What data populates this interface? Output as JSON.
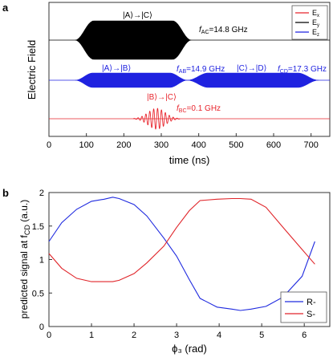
{
  "chart_data": [
    {
      "panel_label": "a",
      "type": "line",
      "xlabel": "time (ns)",
      "ylabel": "Electric Field",
      "xlim": [
        0,
        750
      ],
      "xticks": [
        0,
        100,
        200,
        300,
        400,
        500,
        600,
        700
      ],
      "legend": {
        "position": "top-right",
        "entries": [
          "Ex",
          "Ey",
          "Ez"
        ]
      },
      "series": [
        {
          "name": "Ex",
          "color": "#e8242c",
          "pulses": [
            {
              "start": 225,
              "end": 350,
              "shape": "gaussian",
              "cycles": 12
            }
          ]
        },
        {
          "name": "Ey",
          "color": "#000000",
          "pulses": [
            {
              "start": 70,
              "end": 380
            }
          ]
        },
        {
          "name": "Ez",
          "color": "#1f22e0",
          "pulses": [
            {
              "start": 70,
              "end": 370
            },
            {
              "start": 370,
              "end": 720
            }
          ]
        }
      ],
      "annotations": [
        {
          "text": "|A⟩→|C⟩",
          "color": "#000000"
        },
        {
          "text": "f",
          "sub": "AC",
          "suffix": "=14.8 GHz",
          "color": "#000000"
        },
        {
          "text": "|A⟩→|B⟩",
          "color": "#1f22e0"
        },
        {
          "text": "f",
          "sub": "AB",
          "suffix": "=14.9 GHz",
          "color": "#1f22e0"
        },
        {
          "text": "|C⟩→|D⟩",
          "color": "#1f22e0"
        },
        {
          "text": "f",
          "sub": "CD",
          "suffix": "=17.3 GHz",
          "color": "#1f22e0"
        },
        {
          "text": "|B⟩→|C⟩",
          "color": "#e8242c"
        },
        {
          "text": "f",
          "sub": "BC",
          "suffix": "=0.1 GHz",
          "color": "#e8242c"
        }
      ]
    },
    {
      "panel_label": "b",
      "type": "line",
      "xlabel": "ϕ₃ (rad)",
      "ylabel": "predicted signal at f",
      "ylabel_sub": "CD",
      "ylabel_suffix": " (a.u.)",
      "xlim": [
        0,
        6.6
      ],
      "ylim": [
        0,
        2
      ],
      "xticks": [
        0,
        1,
        2,
        3,
        4,
        5,
        6
      ],
      "yticks": [
        0,
        0.5,
        1,
        1.5,
        2
      ],
      "legend": {
        "position": "bottom-right"
      },
      "x": [
        0,
        0.3,
        0.65,
        1.0,
        1.3,
        1.5,
        1.65,
        2.0,
        2.3,
        2.7,
        3.0,
        3.3,
        3.55,
        3.95,
        4.3,
        4.5,
        4.75,
        5.1,
        5.5,
        5.95,
        6.25
      ],
      "series": [
        {
          "name": "R-",
          "color": "#1f2adf",
          "values": [
            1.27,
            1.55,
            1.75,
            1.87,
            1.9,
            1.93,
            1.91,
            1.82,
            1.65,
            1.32,
            1.05,
            0.7,
            0.42,
            0.29,
            0.26,
            0.24,
            0.26,
            0.3,
            0.44,
            0.75,
            1.27
          ]
        },
        {
          "name": "S-",
          "color": "#e0252a",
          "values": [
            1.09,
            0.87,
            0.72,
            0.67,
            0.67,
            0.67,
            0.69,
            0.79,
            0.95,
            1.2,
            1.48,
            1.73,
            1.88,
            1.9,
            1.91,
            1.91,
            1.9,
            1.78,
            1.48,
            1.15,
            0.93
          ]
        }
      ]
    }
  ]
}
